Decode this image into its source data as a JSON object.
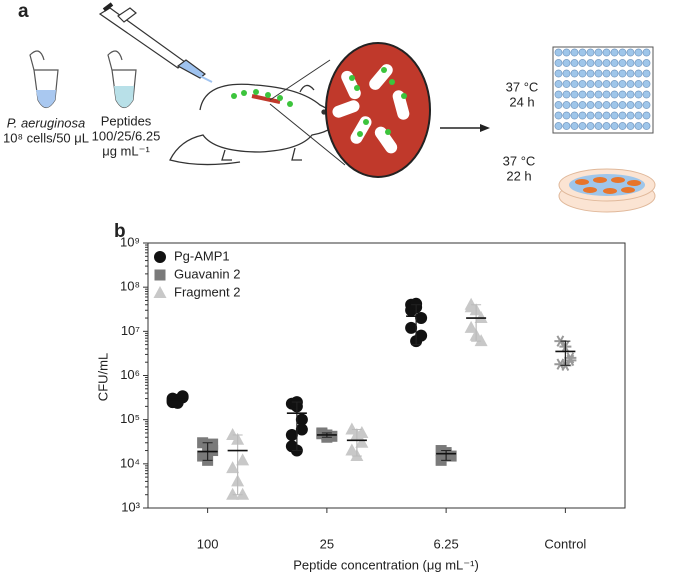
{
  "panel_a": {
    "label": "a",
    "strain": "P. aeruginosa",
    "inoculum": "10⁸ cells/50 μL",
    "peptides": "Peptides",
    "doses": "100/25/6.25",
    "units": "μg mL⁻¹",
    "plate_temp": "37 °C",
    "plate_time": "24 h",
    "dish_temp": "37 °C",
    "dish_time": "22 h"
  },
  "chart_data": {
    "type": "dot",
    "panel_label": "b",
    "x_label": "Peptide concentration (μg mL⁻¹)",
    "y_label": "CFU/mL",
    "categories": [
      "100",
      "25",
      "6.25",
      "Control"
    ],
    "y_scale": "log",
    "ylim": [
      1000,
      1000000000
    ],
    "yticks": [
      {
        "value": 1000,
        "label": "10³"
      },
      {
        "value": 10000,
        "label": "10⁴"
      },
      {
        "value": 100000,
        "label": "10⁵"
      },
      {
        "value": 1000000,
        "label": "10⁶"
      },
      {
        "value": 10000000,
        "label": "10⁷"
      },
      {
        "value": 100000000,
        "label": "10⁸"
      },
      {
        "value": 1000000000,
        "label": "10⁹"
      }
    ],
    "legend": "upper left",
    "series": [
      {
        "name": "Pg-AMP1",
        "color": "#111111",
        "marker": "circle",
        "values": [
          [
            250000,
            280000,
            320000,
            300000,
            240000,
            340000,
            270000
          ],
          [
            230000,
            200000,
            100000,
            45000,
            20000,
            60000,
            25000,
            250000
          ],
          [
            40000000,
            35000000,
            20000000,
            12000000,
            6000000,
            8000000,
            30000000,
            42000000
          ],
          []
        ],
        "means": [
          285000,
          140000,
          22000000,
          null
        ],
        "lower": [
          null,
          20000,
          5000000,
          null
        ],
        "upper": [
          null,
          250000,
          40000000,
          null
        ]
      },
      {
        "name": "Guavanin 2",
        "color": "#7a7a7a",
        "marker": "square",
        "values": [
          [
            30000,
            25000,
            20000,
            15000,
            12000,
            28000
          ],
          [
            48000,
            45000,
            42000,
            50000,
            40000
          ],
          [
            20000,
            18000,
            15000,
            12000,
            16000
          ],
          []
        ],
        "means": [
          19000,
          45000,
          17000,
          null
        ],
        "lower": [
          12000,
          40000,
          12000,
          null
        ],
        "upper": [
          30000,
          50000,
          20000,
          null
        ]
      },
      {
        "name": "Fragment 2",
        "color": "#c8c8c8",
        "marker": "triangle",
        "values": [
          [
            45000,
            35000,
            12000,
            8000,
            4000,
            2000,
            2000
          ],
          [
            60000,
            45000,
            30000,
            20000,
            15000,
            50000
          ],
          [
            40000000,
            30000000,
            20000000,
            12000000,
            8000000,
            6000000,
            35000000
          ],
          []
        ],
        "means": [
          20000,
          34000,
          20000000,
          null
        ],
        "lower": [
          2000,
          15000,
          6000000,
          null
        ],
        "upper": [
          45000,
          60000,
          40000000,
          null
        ]
      },
      {
        "color": "#999999",
        "marker": "asterisk",
        "values": [
          [],
          [],
          [],
          [
            6000000,
            4500000,
            2500000,
            1800000,
            1700000,
            2200000
          ]
        ],
        "means": [
          null,
          null,
          null,
          3500000
        ],
        "lower": [
          null,
          null,
          null,
          1700000
        ],
        "upper": [
          null,
          null,
          null,
          6000000
        ]
      }
    ]
  }
}
